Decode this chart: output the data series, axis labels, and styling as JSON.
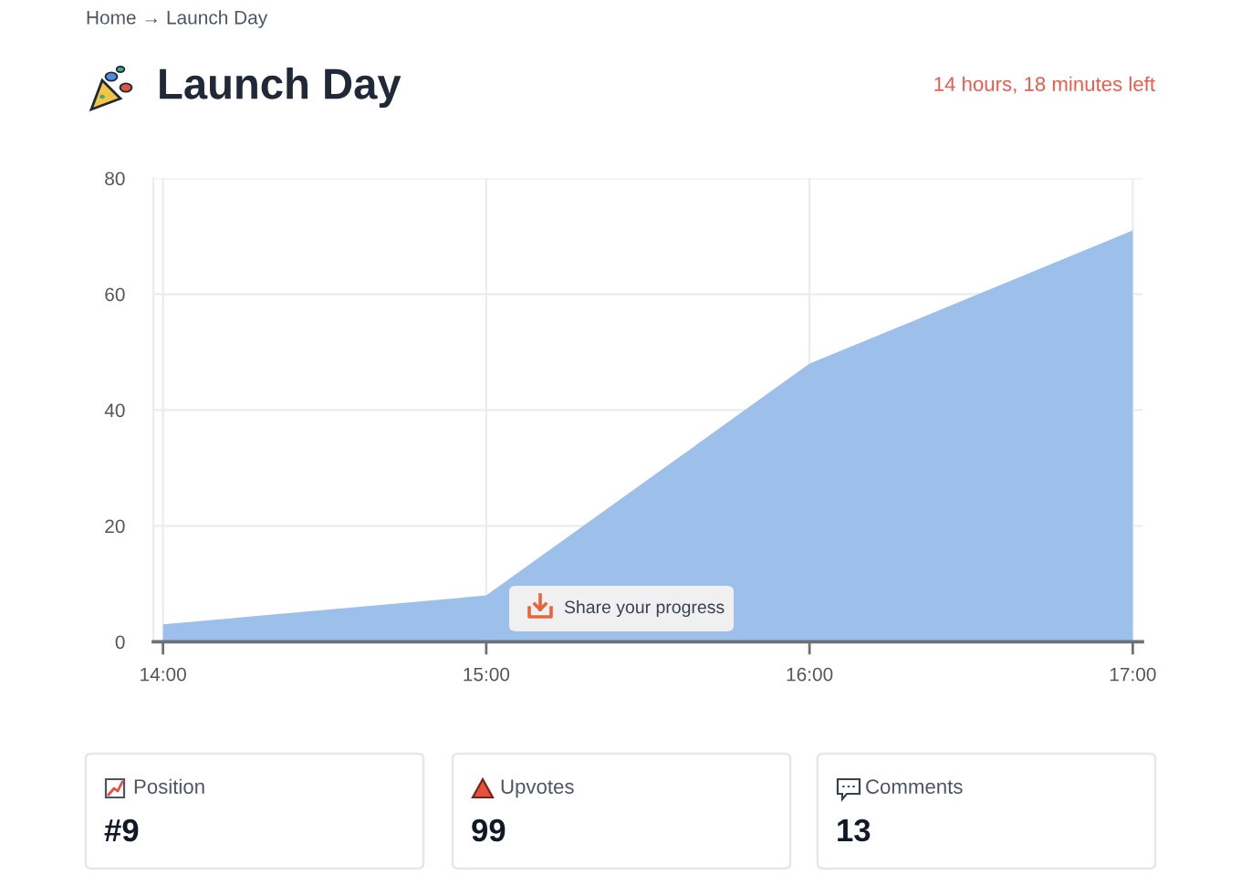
{
  "chart_data": {
    "type": "area",
    "title": "Launch Day",
    "x": [
      14,
      15,
      16,
      17
    ],
    "values": [
      3,
      8,
      48,
      71
    ],
    "color": "#9dc0eb",
    "xlim": [
      13.97,
      17.03
    ],
    "xticks": [
      {
        "value": 14,
        "label": "14:00"
      },
      {
        "value": 15,
        "label": "15:00"
      },
      {
        "value": 16,
        "label": "16:00"
      },
      {
        "value": 17,
        "label": "17:00"
      }
    ],
    "ylim": [
      0,
      80
    ],
    "yticks": [
      0,
      20,
      40,
      60,
      80
    ],
    "grid": true,
    "annotations": [
      "Home → Launch Day",
      "14 hours, 18 minutes left",
      "Share your progress",
      "Position",
      "#9",
      "Upvotes",
      "99",
      "Comments",
      "13"
    ]
  }
}
